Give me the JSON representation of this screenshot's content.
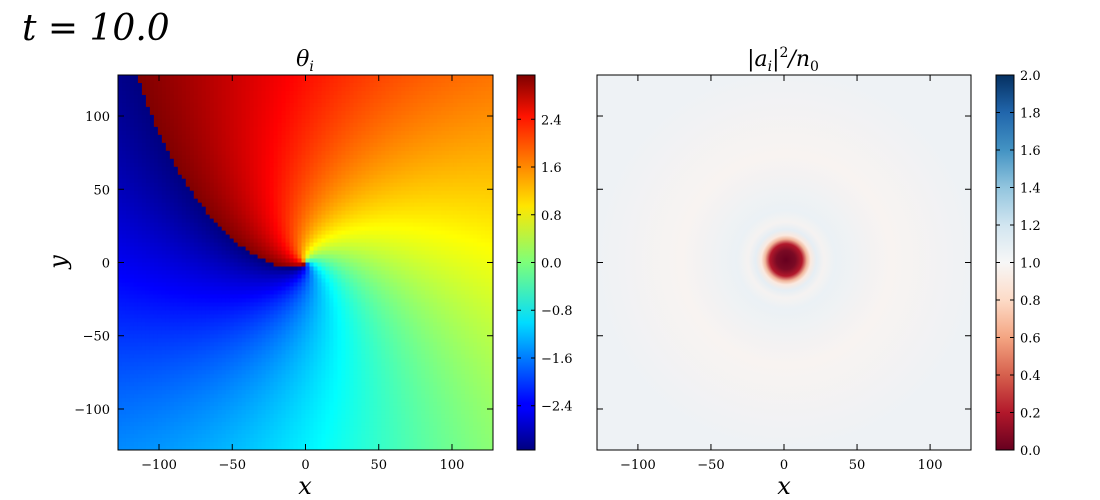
{
  "figure": {
    "time_label": "t = 10.0"
  },
  "chart_data": [
    {
      "type": "heatmap",
      "title": "θ_i",
      "title_main": "θ",
      "title_sub": "i",
      "xlabel": "x",
      "ylabel": "y",
      "xlim": [
        -128,
        128
      ],
      "ylim": [
        -128,
        128
      ],
      "xticks": [
        -100,
        -50,
        0,
        50,
        100
      ],
      "yticks": [
        -100,
        -50,
        0,
        50,
        100
      ],
      "xtick_labels": [
        "−100",
        "−50",
        "0",
        "50",
        "100"
      ],
      "ytick_labels": [
        "−100",
        "−50",
        "0",
        "50",
        "100"
      ],
      "colormap": "jet",
      "colorbar": {
        "range": [
          -3.14159,
          3.14159
        ],
        "ticks": [
          -2.4,
          -1.6,
          -0.8,
          0.0,
          0.8,
          1.6,
          2.4
        ],
        "tick_labels": [
          "−2.4",
          "−1.6",
          "−0.8",
          "0.0",
          "0.8",
          "1.6",
          "2.4"
        ]
      },
      "grid": false
    },
    {
      "type": "heatmap",
      "title": "|a_i|^2/n_0",
      "xlabel": "x",
      "ylabel": "",
      "xlim": [
        -128,
        128
      ],
      "ylim": [
        -128,
        128
      ],
      "xticks": [
        -100,
        -50,
        0,
        50,
        100
      ],
      "xtick_labels": [
        "−100",
        "−50",
        "0",
        "50",
        "100"
      ],
      "colormap": "RdBu",
      "colorbar": {
        "range": [
          0.0,
          2.0
        ],
        "ticks": [
          0.0,
          0.2,
          0.4,
          0.6,
          0.8,
          1.0,
          1.2,
          1.4,
          1.6,
          1.8,
          2.0
        ],
        "tick_labels": [
          "0.0",
          "0.2",
          "0.4",
          "0.6",
          "0.8",
          "1.0",
          "1.2",
          "1.4",
          "1.6",
          "1.8",
          "2.0"
        ]
      },
      "grid": false
    }
  ]
}
